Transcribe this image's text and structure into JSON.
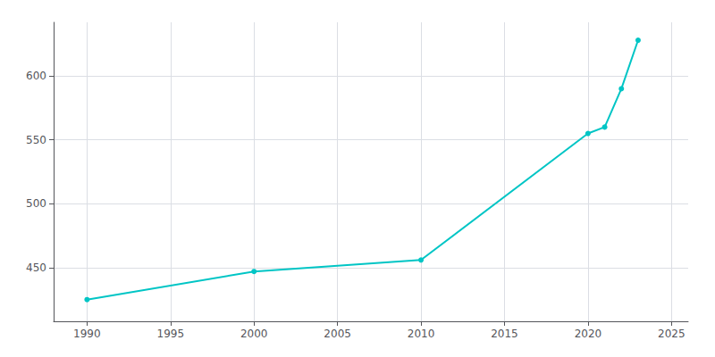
{
  "chart_data": {
    "type": "line",
    "x": [
      1990,
      2000,
      2010,
      2020,
      2021,
      2022,
      2023
    ],
    "values": [
      425,
      447,
      456,
      555,
      560,
      590,
      628
    ],
    "color": "#00C5C5",
    "marker": "circle",
    "xlim": [
      1988,
      2026
    ],
    "ylim": [
      408,
      642
    ],
    "xticks": [
      1990,
      1995,
      2000,
      2005,
      2010,
      2015,
      2020,
      2025
    ],
    "yticks": [
      450,
      500,
      550,
      600
    ],
    "grid": true
  }
}
